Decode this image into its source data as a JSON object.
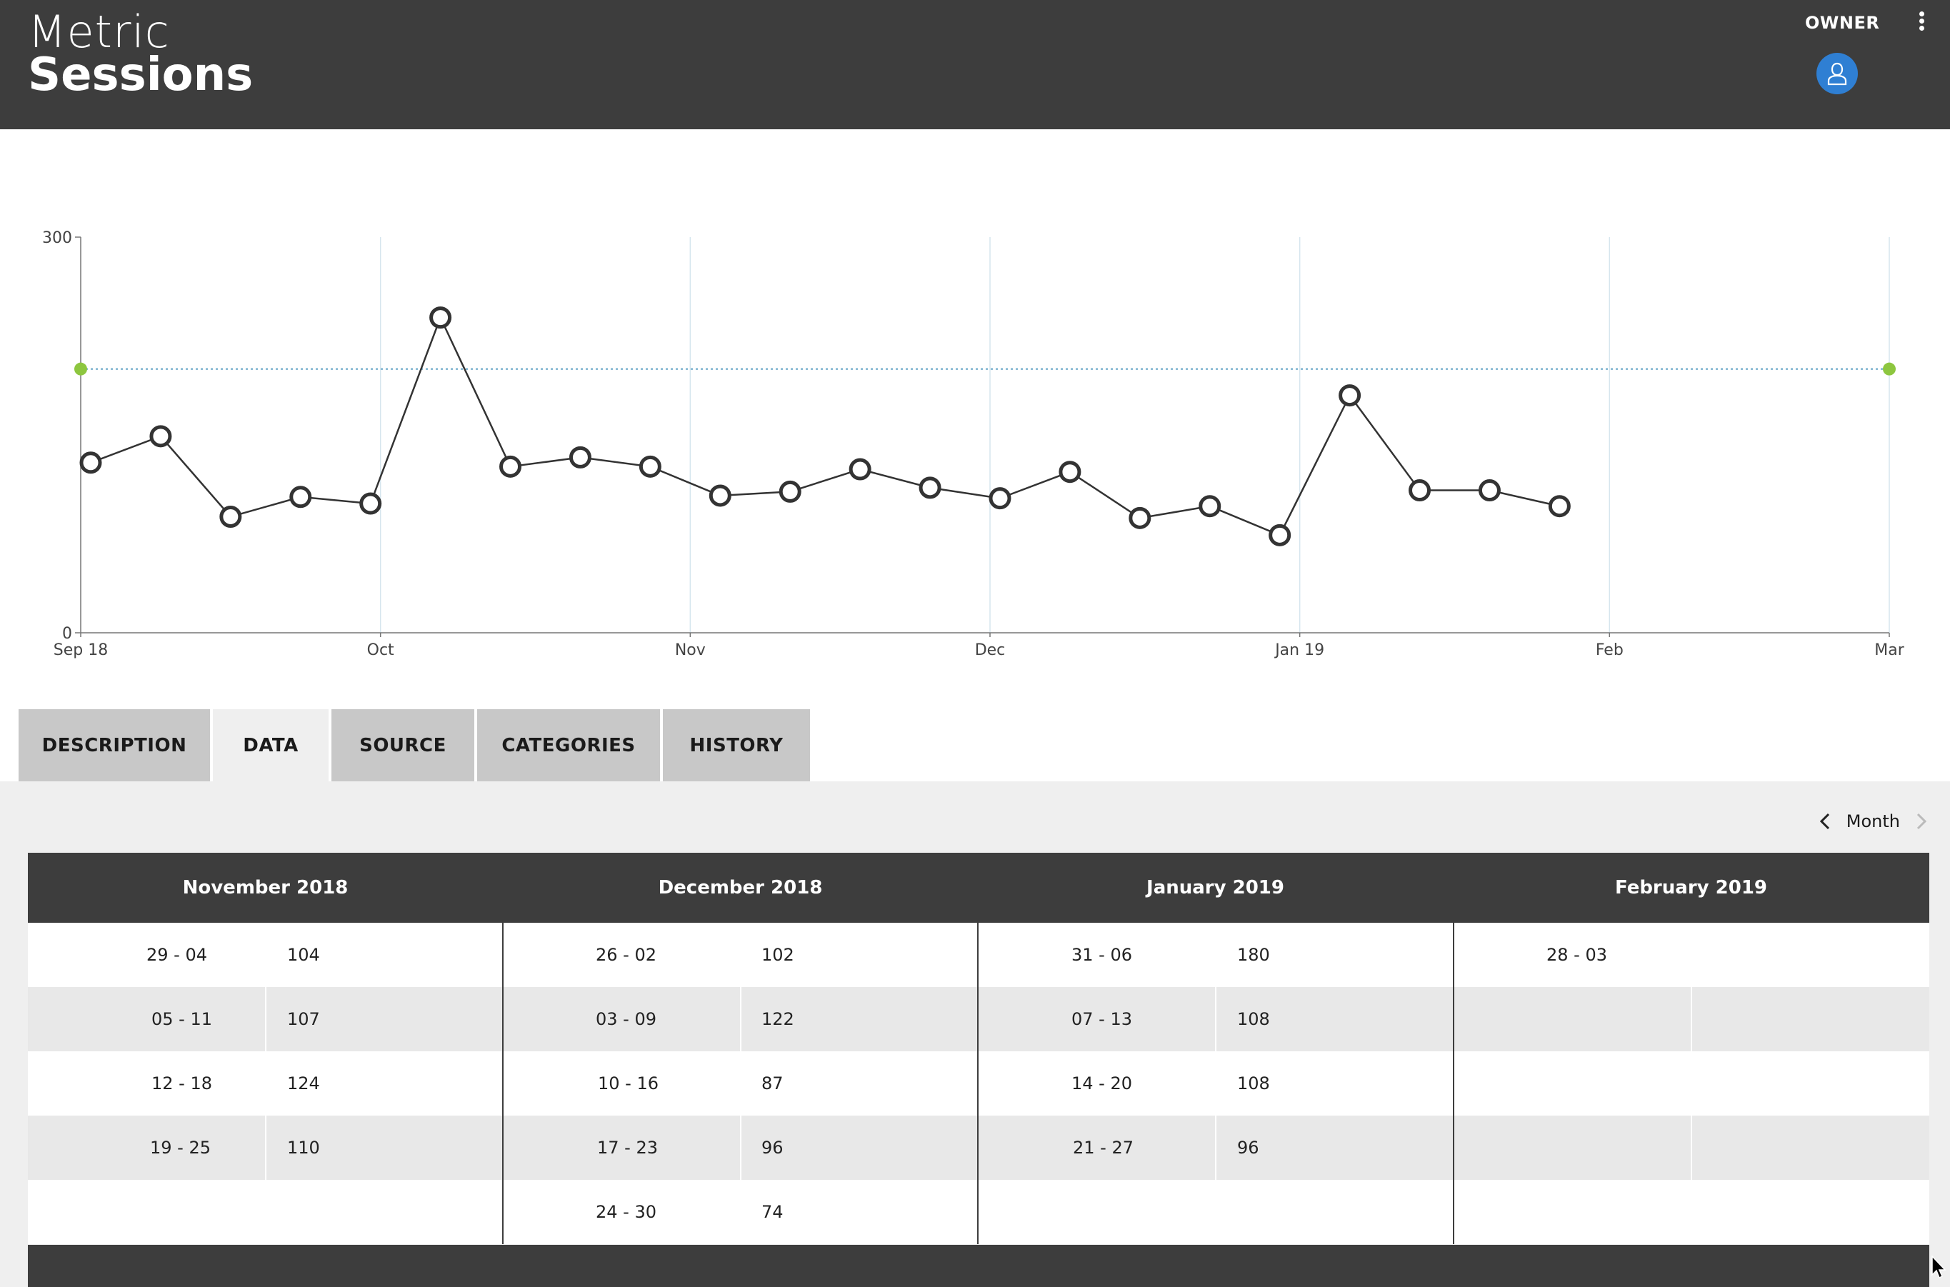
{
  "header": {
    "label": "Metric",
    "title": "Sessions",
    "role": "OWNER",
    "avatar_color": "#2f7fd3",
    "bg_color": "#3d3d3d"
  },
  "chart_data": {
    "type": "line",
    "y_ticks": [
      "300",
      "0"
    ],
    "ylim": [
      0,
      300
    ],
    "x_tick_labels": [
      "Sep 18",
      "Oct",
      "Nov",
      "Dec",
      "Jan 19",
      "Feb",
      "Mar"
    ],
    "x_tick_dates": [
      "2018-09-01",
      "2018-10-01",
      "2018-11-01",
      "2018-12-01",
      "2019-01-01",
      "2019-02-01",
      "2019-03-01"
    ],
    "xlim": [
      "2018-09-01",
      "2019-03-01"
    ],
    "target": 200,
    "target_color": "#8dc63f",
    "grid": "vertical",
    "series": [
      {
        "color": "#333333",
        "points": [
          {
            "x": "2018-09-02",
            "y": 129
          },
          {
            "x": "2018-09-09",
            "y": 149
          },
          {
            "x": "2018-09-16",
            "y": 88
          },
          {
            "x": "2018-09-23",
            "y": 103
          },
          {
            "x": "2018-09-30",
            "y": 98
          },
          {
            "x": "2018-10-07",
            "y": 239
          },
          {
            "x": "2018-10-14",
            "y": 126
          },
          {
            "x": "2018-10-21",
            "y": 133
          },
          {
            "x": "2018-10-28",
            "y": 126
          },
          {
            "x": "2018-11-04",
            "y": 104
          },
          {
            "x": "2018-11-11",
            "y": 107
          },
          {
            "x": "2018-11-18",
            "y": 124
          },
          {
            "x": "2018-11-25",
            "y": 110
          },
          {
            "x": "2018-12-02",
            "y": 102
          },
          {
            "x": "2018-12-09",
            "y": 122
          },
          {
            "x": "2018-12-16",
            "y": 87
          },
          {
            "x": "2018-12-23",
            "y": 96
          },
          {
            "x": "2018-12-30",
            "y": 74
          },
          {
            "x": "2019-01-06",
            "y": 180
          },
          {
            "x": "2019-01-13",
            "y": 108
          },
          {
            "x": "2019-01-20",
            "y": 108
          },
          {
            "x": "2019-01-27",
            "y": 96
          }
        ]
      }
    ]
  },
  "tabs": [
    {
      "label": "DESCRIPTION",
      "active": false
    },
    {
      "label": "DATA",
      "active": true
    },
    {
      "label": "SOURCE",
      "active": false
    },
    {
      "label": "CATEGORIES",
      "active": false
    },
    {
      "label": "HISTORY",
      "active": false
    }
  ],
  "month_nav": {
    "label": "Month"
  },
  "table": {
    "months": [
      {
        "title": "November 2018",
        "rows": [
          [
            "29 - 04",
            "104"
          ],
          [
            "05 - 11",
            "107"
          ],
          [
            "12 - 18",
            "124"
          ],
          [
            "19 - 25",
            "110"
          ]
        ]
      },
      {
        "title": "December 2018",
        "rows": [
          [
            "26 - 02",
            "102"
          ],
          [
            "03 - 09",
            "122"
          ],
          [
            "10 - 16",
            "87"
          ],
          [
            "17 - 23",
            "96"
          ],
          [
            "24 - 30",
            "74"
          ]
        ]
      },
      {
        "title": "January 2019",
        "rows": [
          [
            "31 - 06",
            "180"
          ],
          [
            "07 - 13",
            "108"
          ],
          [
            "14 - 20",
            "108"
          ],
          [
            "21 - 27",
            "96"
          ]
        ]
      },
      {
        "title": "February 2019",
        "rows": [
          [
            "28 - 03",
            ""
          ]
        ]
      }
    ]
  }
}
